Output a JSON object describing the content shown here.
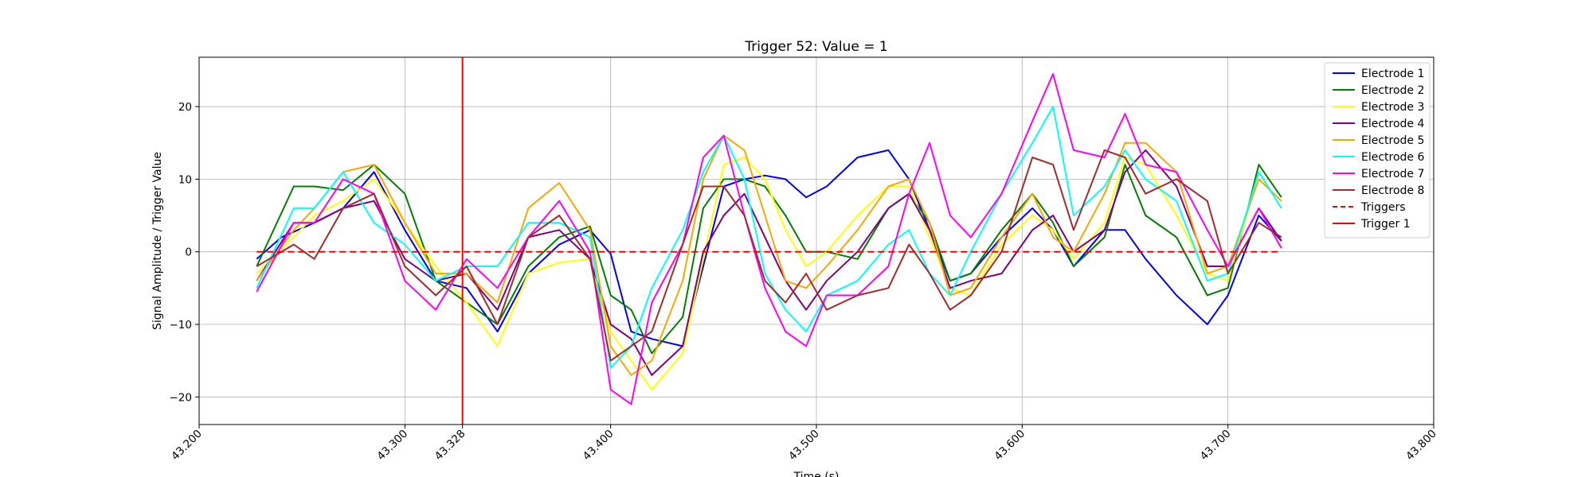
{
  "chart_data": {
    "type": "line",
    "title": "Trigger 52: Value = 1",
    "xlabel": "Time (s)",
    "ylabel": "Signal Amplitude / Trigger Value",
    "xlim": [
      43.2,
      43.8
    ],
    "ylim": [
      -23.8,
      26.8
    ],
    "grid": true,
    "legend_position": "top-right",
    "x_ticks": [
      43.2,
      43.3,
      43.328,
      43.4,
      43.5,
      43.6,
      43.7,
      43.8
    ],
    "x_tick_labels": [
      "43.200",
      "43.300",
      "43.328",
      "43.400",
      "43.500",
      "43.600",
      "43.700",
      "43.800"
    ],
    "y_ticks": [
      -20,
      -10,
      0,
      10,
      20
    ],
    "y_tick_labels": [
      "−20",
      "−10",
      "0",
      "10",
      "20"
    ],
    "series": [
      {
        "name": "Electrode 1",
        "color": "#0000ff",
        "x": [
          43.228,
          43.24,
          43.256,
          43.27,
          43.285,
          43.3,
          43.315,
          43.33,
          43.345,
          43.36,
          43.375,
          43.39,
          43.4,
          43.41,
          43.42,
          43.435,
          43.445,
          43.455,
          43.465,
          43.475,
          43.485,
          43.495,
          43.505,
          43.52,
          43.535,
          43.545,
          43.555,
          43.565,
          43.575,
          43.59,
          43.605,
          43.615,
          43.625,
          43.64,
          43.65,
          43.66,
          43.675,
          43.69,
          43.7,
          43.715,
          43.726
        ],
        "y": [
          -1,
          2,
          4,
          6,
          11,
          3,
          -4,
          -5,
          -11,
          -3,
          1,
          3,
          -0.3,
          -11,
          -12,
          -13,
          -2,
          9,
          10,
          10.5,
          10,
          7.5,
          9,
          13,
          14,
          10,
          3,
          -4,
          -3,
          2,
          6,
          3,
          -2,
          3,
          3,
          -1,
          -6,
          -10,
          -6,
          5,
          1.5
        ]
      },
      {
        "name": "Electrode 2",
        "color": "#008000",
        "x": [
          43.228,
          43.246,
          43.256,
          43.27,
          43.285,
          43.3,
          43.315,
          43.33,
          43.345,
          43.36,
          43.375,
          43.39,
          43.4,
          43.41,
          43.42,
          43.435,
          43.445,
          43.455,
          43.465,
          43.475,
          43.485,
          43.495,
          43.505,
          43.52,
          43.535,
          43.545,
          43.555,
          43.565,
          43.575,
          43.59,
          43.605,
          43.615,
          43.625,
          43.64,
          43.65,
          43.66,
          43.675,
          43.69,
          43.7,
          43.715,
          43.726
        ],
        "y": [
          -2,
          9,
          9,
          8.5,
          12,
          8,
          -4,
          -7,
          -10,
          -2,
          2,
          3.5,
          -6,
          -8,
          -14,
          -9,
          6,
          10,
          10,
          9,
          5,
          0,
          0,
          -1,
          6,
          8,
          4,
          -4,
          -3,
          3,
          8,
          4,
          -2,
          2,
          12,
          5,
          2,
          -6,
          -5,
          12,
          7.5
        ]
      },
      {
        "name": "Electrode 3",
        "color": "#ffff00",
        "x": [
          43.228,
          43.246,
          43.256,
          43.27,
          43.285,
          43.3,
          43.315,
          43.33,
          43.345,
          43.36,
          43.375,
          43.39,
          43.4,
          43.41,
          43.42,
          43.435,
          43.445,
          43.455,
          43.465,
          43.475,
          43.485,
          43.495,
          43.505,
          43.52,
          43.535,
          43.545,
          43.555,
          43.565,
          43.575,
          43.59,
          43.605,
          43.615,
          43.625,
          43.64,
          43.65,
          43.66,
          43.675,
          43.69,
          43.7,
          43.715,
          43.726
        ],
        "y": [
          -3,
          2,
          5,
          7,
          10,
          4,
          -2,
          -7,
          -13,
          -3,
          -1.5,
          -1,
          -11,
          -15,
          -19,
          -14,
          -1,
          12,
          13,
          10,
          3,
          -2,
          0,
          5,
          9,
          9,
          2,
          -5,
          -6,
          1,
          5,
          3,
          -1,
          4,
          13,
          12,
          5,
          -3,
          -4,
          11,
          6
        ]
      },
      {
        "name": "Electrode 4",
        "color": "#800080",
        "x": [
          43.228,
          43.246,
          43.256,
          43.27,
          43.285,
          43.3,
          43.315,
          43.33,
          43.345,
          43.36,
          43.375,
          43.39,
          43.4,
          43.41,
          43.42,
          43.435,
          43.445,
          43.455,
          43.465,
          43.475,
          43.485,
          43.495,
          43.505,
          43.52,
          43.535,
          43.545,
          43.555,
          43.565,
          43.575,
          43.59,
          43.605,
          43.615,
          43.625,
          43.64,
          43.65,
          43.66,
          43.675,
          43.69,
          43.7,
          43.715,
          43.726
        ],
        "y": [
          -4,
          4,
          4,
          6,
          7,
          -1,
          -4,
          -3,
          -8,
          2,
          3,
          -1,
          -10,
          -12,
          -17,
          -13,
          0,
          5,
          8,
          2,
          -4,
          -8,
          -4,
          0,
          6,
          8,
          3,
          -5,
          -4,
          -3,
          3,
          5,
          0,
          3,
          11,
          14,
          9,
          -2,
          -2,
          6,
          1.5
        ]
      },
      {
        "name": "Electrode 5",
        "color": "#ffa500",
        "x": [
          43.228,
          43.246,
          43.256,
          43.27,
          43.285,
          43.3,
          43.315,
          43.33,
          43.345,
          43.36,
          43.375,
          43.39,
          43.4,
          43.41,
          43.42,
          43.435,
          43.445,
          43.455,
          43.465,
          43.475,
          43.485,
          43.495,
          43.505,
          43.52,
          43.535,
          43.545,
          43.555,
          43.565,
          43.575,
          43.59,
          43.605,
          43.615,
          43.625,
          43.64,
          43.65,
          43.66,
          43.675,
          43.69,
          43.7,
          43.715,
          43.726
        ],
        "y": [
          -4,
          3,
          6,
          11,
          12,
          4,
          -3,
          -3,
          -7,
          6,
          9.5,
          3,
          -13,
          -17,
          -15,
          -4,
          10,
          16,
          14,
          5,
          -4,
          -5,
          -2,
          3,
          9,
          10,
          4,
          -6,
          -5,
          2,
          8,
          2,
          0,
          8,
          15,
          15,
          11,
          -3,
          -2,
          10,
          7
        ]
      },
      {
        "name": "Electrode 6",
        "color": "#00ffff",
        "x": [
          43.228,
          43.246,
          43.256,
          43.27,
          43.285,
          43.3,
          43.315,
          43.33,
          43.345,
          43.36,
          43.375,
          43.39,
          43.4,
          43.41,
          43.42,
          43.435,
          43.445,
          43.455,
          43.465,
          43.475,
          43.485,
          43.495,
          43.505,
          43.52,
          43.535,
          43.545,
          43.555,
          43.565,
          43.575,
          43.59,
          43.605,
          43.615,
          43.625,
          43.64,
          43.65,
          43.66,
          43.675,
          43.69,
          43.7,
          43.715,
          43.726
        ],
        "y": [
          -5,
          6,
          6,
          11,
          4,
          1,
          -4,
          -2,
          -2,
          4,
          4,
          2,
          -16,
          -13,
          -5,
          3,
          11,
          16,
          10,
          -3,
          -8,
          -11,
          -6,
          -4,
          1,
          3,
          -3,
          -6,
          0,
          8,
          15,
          20,
          5,
          9,
          14,
          10,
          7,
          -4,
          -3,
          11,
          6
        ]
      },
      {
        "name": "Electrode 7",
        "color": "#ff00ff",
        "x": [
          43.228,
          43.246,
          43.256,
          43.27,
          43.285,
          43.3,
          43.315,
          43.33,
          43.345,
          43.36,
          43.375,
          43.39,
          43.4,
          43.41,
          43.42,
          43.435,
          43.445,
          43.455,
          43.465,
          43.475,
          43.485,
          43.495,
          43.505,
          43.52,
          43.535,
          43.545,
          43.555,
          43.565,
          43.575,
          43.59,
          43.605,
          43.615,
          43.625,
          43.64,
          43.65,
          43.66,
          43.675,
          43.69,
          43.7,
          43.715,
          43.726
        ],
        "y": [
          -5.5,
          4,
          4,
          10,
          8,
          -4,
          -8,
          -1,
          -5,
          2,
          7,
          0,
          -19,
          -21,
          -7,
          1,
          13,
          16,
          5,
          -5,
          -11,
          -13,
          -6,
          -6,
          -2,
          8,
          15,
          5,
          2,
          8,
          18,
          24.5,
          14,
          13,
          19,
          12,
          11,
          3,
          -2,
          6,
          0.5
        ]
      },
      {
        "name": "Electrode 8",
        "color": "#a52a2a",
        "x": [
          43.228,
          43.246,
          43.256,
          43.27,
          43.285,
          43.3,
          43.315,
          43.33,
          43.345,
          43.36,
          43.375,
          43.39,
          43.4,
          43.41,
          43.42,
          43.435,
          43.445,
          43.455,
          43.465,
          43.475,
          43.485,
          43.495,
          43.505,
          43.52,
          43.535,
          43.545,
          43.555,
          43.565,
          43.575,
          43.59,
          43.605,
          43.615,
          43.625,
          43.64,
          43.65,
          43.66,
          43.675,
          43.69,
          43.7,
          43.715,
          43.726
        ],
        "y": [
          -2,
          1,
          -1,
          6,
          8,
          -2,
          -6,
          -2,
          -10,
          2,
          5,
          -1,
          -15,
          -13,
          -11,
          1,
          9,
          9,
          5,
          -4,
          -7,
          -3,
          -8,
          -6,
          -5,
          1,
          -3,
          -8,
          -6,
          0,
          13,
          12,
          3,
          14,
          13,
          8,
          10,
          7,
          -3,
          4,
          2
        ]
      },
      {
        "name": "Triggers",
        "color": "#ff0000",
        "dashed": true,
        "x": [
          43.228,
          43.726
        ],
        "y": [
          0,
          0
        ]
      },
      {
        "name": "Trigger 1",
        "color": "#ff0000",
        "vertical": true,
        "x": [
          43.328,
          43.328
        ]
      }
    ]
  }
}
